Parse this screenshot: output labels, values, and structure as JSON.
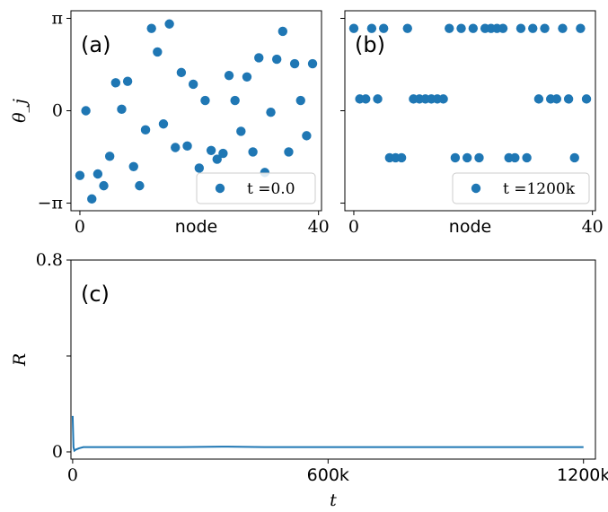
{
  "chart_data": [
    {
      "panel": "(a)",
      "type": "scatter",
      "xlabel": "node",
      "ylabel": "θ_j",
      "xlim": [
        -1.5,
        40.5
      ],
      "ylim": [
        -3.4,
        3.4
      ],
      "xticks": [
        {
          "v": 0,
          "label": "0"
        },
        {
          "v": 40,
          "label": "40"
        }
      ],
      "yticks": [
        {
          "v": -3.14159,
          "label": "−π"
        },
        {
          "v": 0,
          "label": "0"
        },
        {
          "v": 3.14159,
          "label": "π"
        }
      ],
      "legend": {
        "label": "t =0.0",
        "position": "lower-right"
      },
      "series": [
        {
          "x": [
            0,
            1,
            2,
            3,
            4,
            5,
            6,
            7,
            8,
            9,
            10,
            11,
            12,
            13,
            14,
            15,
            16,
            17,
            18,
            19,
            20,
            21,
            22,
            23,
            24,
            25,
            26,
            27,
            28,
            29,
            30,
            31,
            32,
            33,
            34,
            35,
            36,
            37,
            38,
            39
          ],
          "y": [
            -2.2,
            0.0,
            -3.0,
            -2.15,
            -2.55,
            -1.55,
            0.95,
            0.05,
            1.0,
            -1.9,
            -2.55,
            -0.65,
            2.8,
            2.0,
            -0.45,
            2.95,
            -1.25,
            1.3,
            -1.2,
            0.9,
            -1.95,
            0.35,
            -1.35,
            -1.65,
            -1.45,
            1.2,
            0.35,
            -0.7,
            1.15,
            -1.4,
            1.8,
            -2.1,
            -0.05,
            1.75,
            2.7,
            -1.4,
            1.6,
            0.35,
            -0.85,
            1.6
          ]
        }
      ]
    },
    {
      "panel": "(b)",
      "type": "scatter",
      "xlabel": "node",
      "ylabel": "",
      "xlim": [
        -1.5,
        40.5
      ],
      "ylim": [
        -3.4,
        3.4
      ],
      "xticks": [
        {
          "v": 0,
          "label": "0"
        },
        {
          "v": 40,
          "label": "40"
        }
      ],
      "yticks": [
        {
          "v": -3.14159,
          "label": ""
        },
        {
          "v": 0,
          "label": ""
        },
        {
          "v": 3.14159,
          "label": ""
        }
      ],
      "legend": {
        "label": "t =1200k",
        "position": "lower-right"
      },
      "series": [
        {
          "x": [
            0,
            1,
            2,
            3,
            4,
            5,
            6,
            7,
            8,
            9,
            10,
            11,
            12,
            13,
            14,
            15,
            16,
            17,
            18,
            19,
            20,
            21,
            22,
            23,
            24,
            25,
            26,
            27,
            28,
            29,
            30,
            31,
            32,
            33,
            34,
            35,
            36,
            37,
            38,
            39
          ],
          "y": [
            2.8,
            0.4,
            0.4,
            2.8,
            0.4,
            2.8,
            -1.6,
            -1.6,
            -1.6,
            2.8,
            0.4,
            0.4,
            0.4,
            0.4,
            0.4,
            0.4,
            2.8,
            -1.6,
            2.8,
            -1.6,
            2.8,
            -1.6,
            2.8,
            2.8,
            2.8,
            2.8,
            -1.6,
            -1.6,
            2.8,
            -1.6,
            2.8,
            0.4,
            2.8,
            0.4,
            0.4,
            2.8,
            0.4,
            -1.6,
            2.8,
            0.4
          ]
        }
      ]
    },
    {
      "panel": "(c)",
      "type": "line",
      "xlabel": "t",
      "ylabel": "R",
      "xlim": [
        -4,
        1228
      ],
      "ylim": [
        -0.03,
        0.8
      ],
      "xticks": [
        {
          "v": 0,
          "label": "0"
        },
        {
          "v": 600,
          "label": "600k"
        },
        {
          "v": 1200,
          "label": "1200k"
        }
      ],
      "yticks": [
        {
          "v": 0,
          "label": "0"
        },
        {
          "v": 0.4,
          "label": ""
        },
        {
          "v": 0.8,
          "label": "0.8"
        }
      ],
      "series": [
        {
          "x": [
            0,
            2,
            4,
            8,
            15,
            25,
            40,
            80,
            150,
            250,
            350,
            450,
            550,
            650,
            750,
            850,
            950,
            1050,
            1150,
            1200
          ],
          "y": [
            0.15,
            0.02,
            0.005,
            0.01,
            0.015,
            0.02,
            0.02,
            0.02,
            0.02,
            0.02,
            0.022,
            0.02,
            0.02,
            0.02,
            0.02,
            0.02,
            0.02,
            0.02,
            0.02,
            0.02
          ]
        }
      ]
    }
  ]
}
